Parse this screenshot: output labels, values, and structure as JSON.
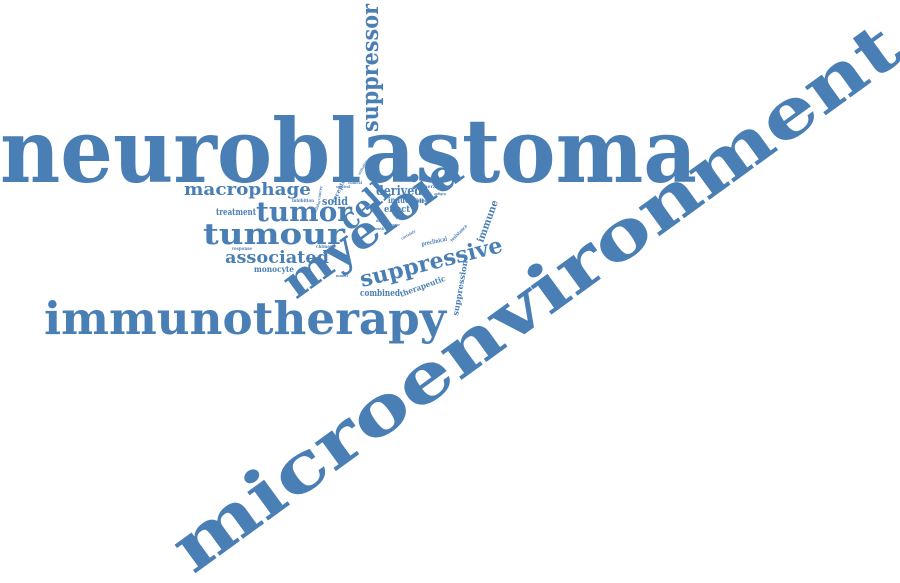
{
  "word_color": "#4a7fb5",
  "words": {
    "neuroblastoma": "neuroblastoma",
    "microenvironment": "microenvironment",
    "immunotherapy": "immunotherapy",
    "myeloid": "myeloid",
    "suppressor": "suppressor",
    "tumour": "tumour",
    "tumor": "tumor",
    "cell": "cell",
    "suppressive": "suppressive",
    "macrophage": "macrophage",
    "associated": "associated",
    "derived": "derived",
    "treatment": "treatment",
    "solid": "solid",
    "monocyte": "monocyte",
    "immune": "immune",
    "therapeutic": "therapeutic",
    "suppression": "suppression",
    "combined": "combined",
    "induction": "induction",
    "effect": "effect",
    "receptor": "receptor",
    "inhibition": "inhibition",
    "response": "response",
    "preclinical": "preclinical",
    "resistance": "resistance",
    "chimeric": "chimeric",
    "therapy": "therapy",
    "survival": "survival",
    "clinical": "clinical",
    "cancer": "cancer",
    "drug": "drug",
    "patient": "patient",
    "correlate": "correlate",
    "activation": "activation",
    "function": "function",
    "cytokine": "cytokine",
    "growth": "growth",
    "model": "model",
    "antigen": "antigen",
    "cellular": "cellular",
    "disease": "disease"
  }
}
